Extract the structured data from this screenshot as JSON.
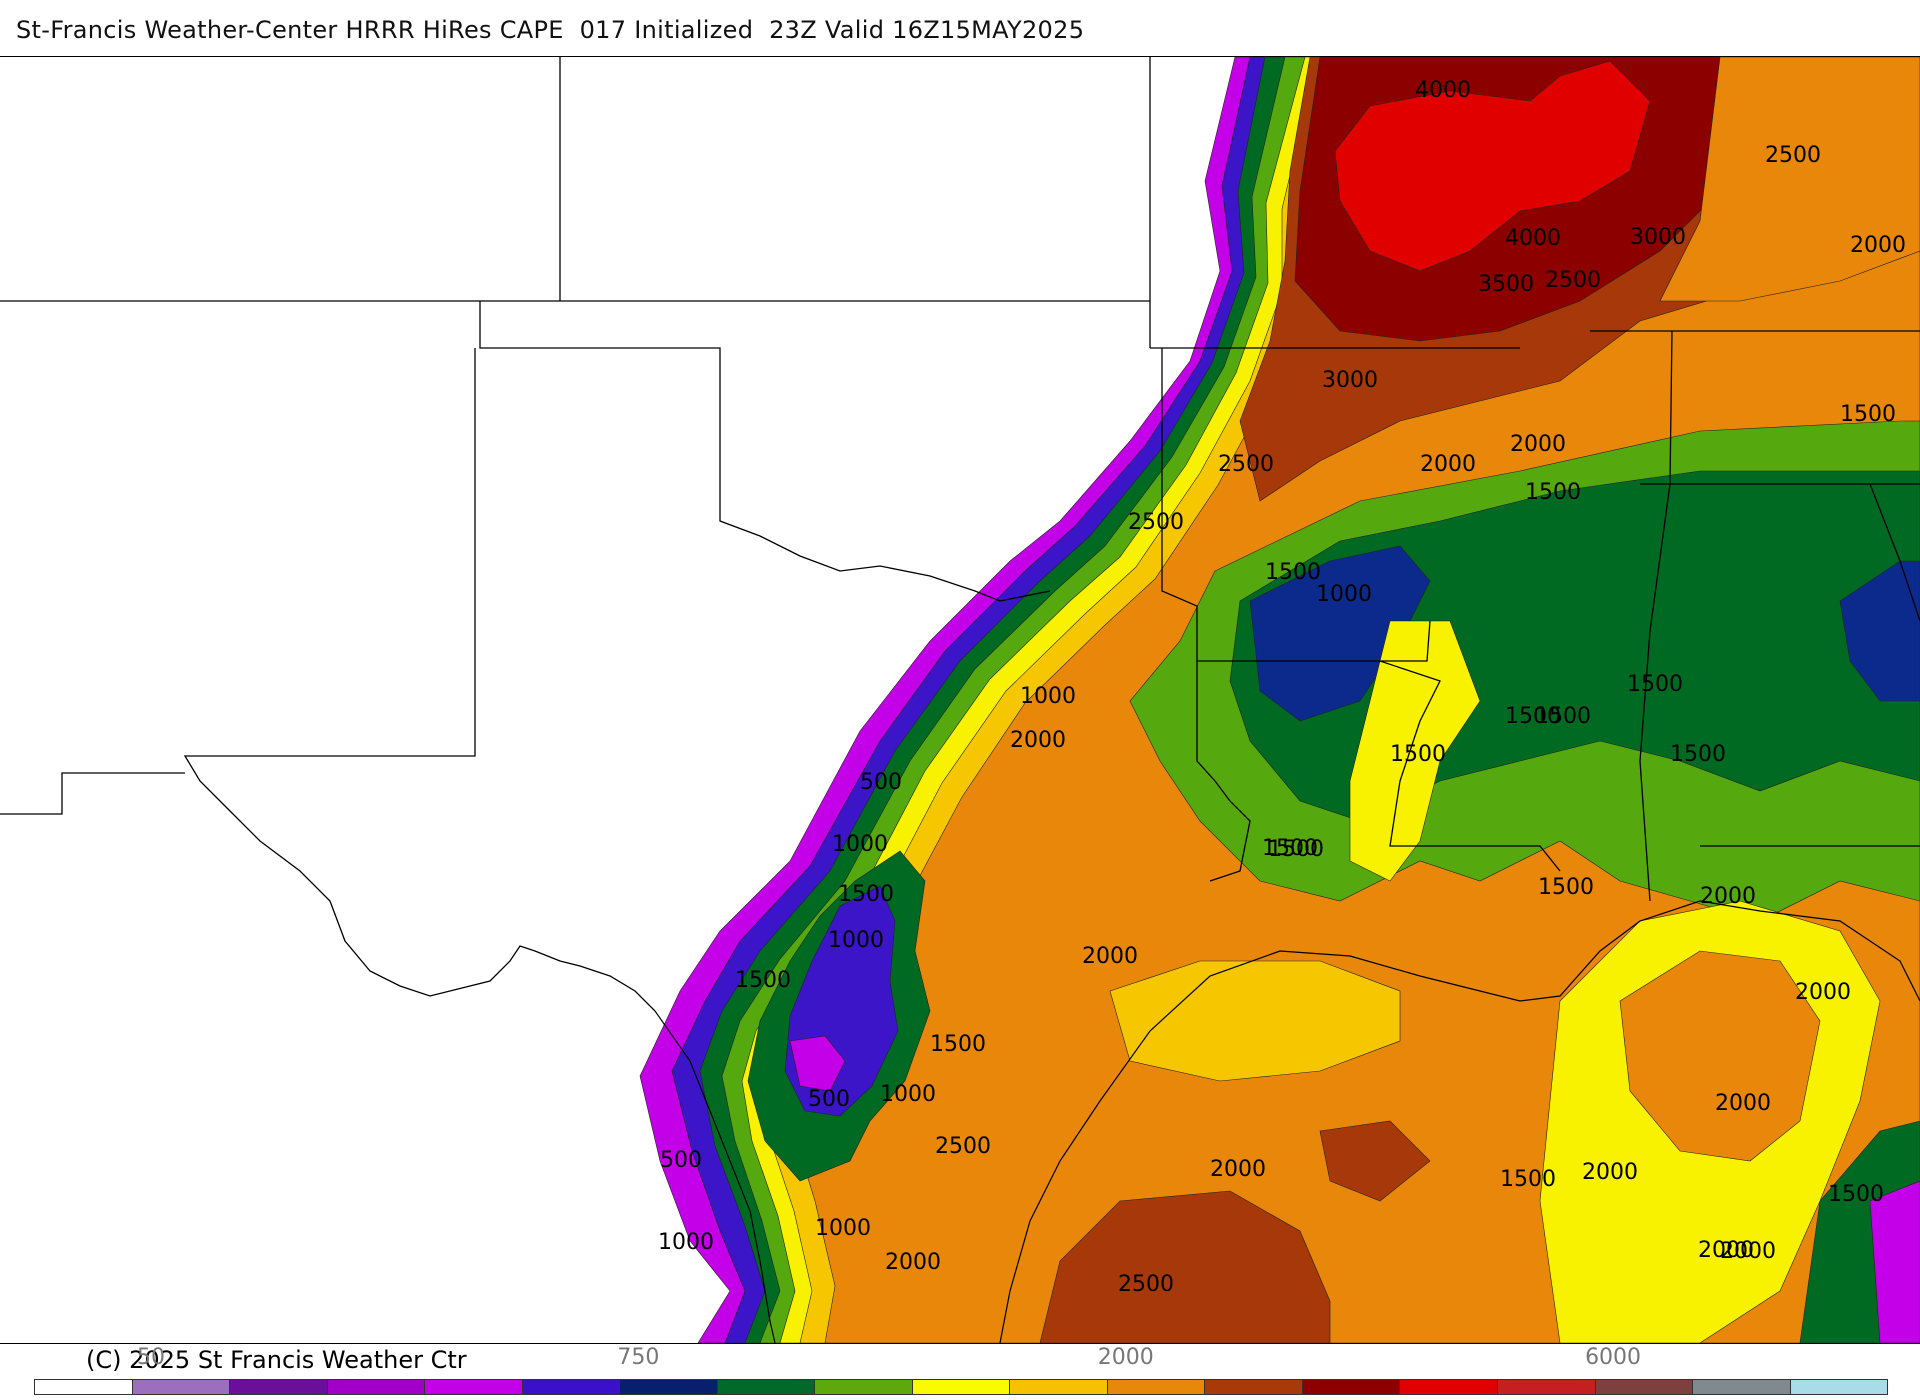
{
  "header": {
    "title": "St-Francis Weather-Center HRRR HiRes CAPE  017 Initialized  23Z Valid 16Z15MAY2025"
  },
  "footer": {
    "copyright": "(C) 2025 St Francis Weather Ctr",
    "colorbar_ticks": [
      {
        "label": "50",
        "index": 1
      },
      {
        "label": "750",
        "index": 6
      },
      {
        "label": "2000",
        "index": 11
      },
      {
        "label": "6000",
        "index": 16
      }
    ],
    "colorbar_colors": [
      "#ffffff",
      "#9b6fbd",
      "#6a0f99",
      "#a000c8",
      "#c400e8",
      "#3a10c8",
      "#06206e",
      "#03692b",
      "#5ea80e",
      "#fafa00",
      "#f6c200",
      "#e7880a",
      "#a83a0a",
      "#8e0000",
      "#e10000",
      "#c42020",
      "#7e3f3f",
      "#808a8e",
      "#a8dce6"
    ]
  },
  "map": {
    "fill_colors": {
      "violet_light": "#a62ad9",
      "violet": "#c300e8",
      "blue": "#3b15c7",
      "navy": "#0b2a8c",
      "green_dark": "#006a23",
      "green": "#56a80f",
      "yellow": "#f8f200",
      "gold": "#f6c700",
      "orange": "#e8870a",
      "rust": "#a73809",
      "maroon": "#8c0000",
      "red": "#e10000"
    },
    "contour_labels": [
      "4000",
      "2500",
      "2000",
      "4000",
      "3000",
      "3500",
      "2500",
      "3000",
      "2500",
      "2000",
      "2000",
      "1500",
      "1500",
      "2500",
      "1500",
      "1000",
      "1000",
      "2000",
      "1500",
      "1500",
      "1500",
      "1500",
      "1500",
      "2000",
      "1500",
      "500",
      "1000",
      "1500",
      "1500",
      "1000",
      "1500",
      "2000",
      "1500",
      "1500",
      "2000",
      "2000",
      "1500",
      "500",
      "1000",
      "2000",
      "2500",
      "2000",
      "2000",
      "1500",
      "500",
      "1000",
      "1000",
      "2000",
      "2500",
      "2000"
    ]
  }
}
